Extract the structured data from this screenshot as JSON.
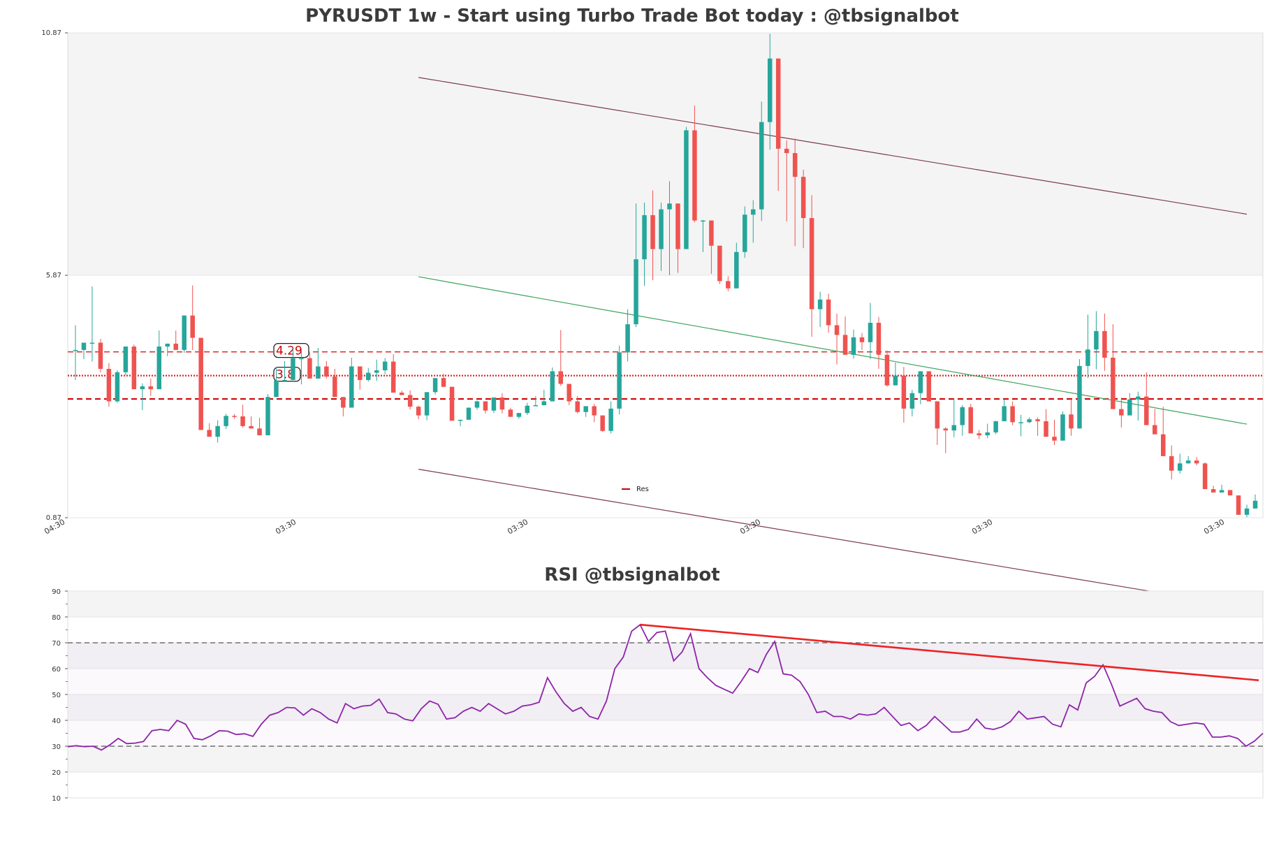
{
  "chart_data": [
    {
      "type": "candlestick",
      "title": "PYRUSDT 1w - Start using Turbo Trade Bot today : @tbsignalbot",
      "y_ticks": [
        "10.87",
        "5.87",
        "0.87"
      ],
      "ylim": [
        0.87,
        10.87
      ],
      "x_tick_labels": [
        "04:30",
        "03:30",
        "03:30",
        "03:30",
        "03:30",
        "03:30"
      ],
      "levels": [
        {
          "label": "4.29",
          "value": 4.29,
          "style": "dashed",
          "color": "#d62728"
        },
        {
          "label": "3.8",
          "value": 3.8,
          "style": "dotted",
          "color": "#d62728"
        },
        {
          "label": "",
          "value": 3.32,
          "style": "dashed",
          "color": "#cc0000"
        }
      ],
      "legend": [
        {
          "name": "Res",
          "color": "#cc0000"
        }
      ],
      "channel": {
        "upper": {
          "from": [
            41,
            9.95
          ],
          "to": [
            140,
            7.13
          ],
          "color": "#7a3a4f"
        },
        "middle": {
          "from": [
            41,
            5.84
          ],
          "to": [
            140,
            2.8
          ],
          "color": "#3aa35a"
        },
        "lower": {
          "from": [
            41,
            1.87
          ],
          "to": [
            140,
            -0.98
          ],
          "color": "#7a3a4f"
        }
      },
      "candles_ohlc": [
        [
          4.33,
          4.84,
          3.71,
          4.33
        ],
        [
          4.33,
          4.47,
          4.14,
          4.48
        ],
        [
          4.48,
          5.64,
          4.09,
          4.48
        ],
        [
          4.48,
          4.56,
          3.87,
          3.94
        ],
        [
          3.94,
          4.06,
          3.16,
          3.27
        ],
        [
          3.27,
          3.91,
          3.24,
          3.87
        ],
        [
          3.87,
          4.04,
          3.81,
          4.4
        ],
        [
          4.4,
          4.44,
          3.59,
          3.52
        ],
        [
          3.52,
          3.64,
          3.09,
          3.58
        ],
        [
          3.58,
          3.74,
          3.38,
          3.52
        ],
        [
          3.52,
          4.73,
          3.71,
          4.4
        ],
        [
          4.4,
          4.46,
          4.2,
          4.46
        ],
        [
          4.46,
          4.73,
          4.37,
          4.33
        ],
        [
          4.33,
          5.04,
          4.27,
          5.04
        ],
        [
          5.04,
          5.66,
          4.33,
          4.58
        ],
        [
          4.58,
          4.52,
          4.31,
          2.68
        ],
        [
          2.68,
          2.82,
          2.66,
          2.54
        ],
        [
          2.54,
          2.88,
          2.42,
          2.76
        ],
        [
          2.76,
          3.01,
          2.7,
          2.97
        ],
        [
          2.97,
          3.01,
          2.91,
          2.96
        ],
        [
          2.96,
          3.2,
          2.73,
          2.76
        ],
        [
          2.76,
          2.96,
          2.73,
          2.71
        ],
        [
          2.71,
          2.93,
          2.6,
          2.57
        ],
        [
          2.57,
          3.42,
          2.66,
          3.36
        ],
        [
          3.36,
          3.97,
          3.49,
          3.7
        ],
        [
          3.7,
          4.1,
          3.75,
          3.71
        ],
        [
          3.71,
          4.39,
          3.89,
          4.16
        ],
        [
          4.16,
          4.36,
          3.62,
          4.16
        ],
        [
          4.16,
          4.28,
          4.09,
          3.74
        ],
        [
          3.74,
          4.37,
          3.95,
          3.99
        ],
        [
          3.99,
          4.1,
          3.74,
          3.78
        ],
        [
          3.78,
          3.94,
          3.43,
          3.36
        ],
        [
          3.36,
          3.19,
          2.96,
          3.14
        ],
        [
          3.14,
          4.17,
          3.45,
          3.99
        ],
        [
          3.99,
          3.99,
          3.51,
          3.71
        ],
        [
          3.71,
          3.96,
          3.68,
          3.86
        ],
        [
          3.86,
          4.13,
          3.69,
          3.91
        ],
        [
          3.91,
          4.16,
          3.83,
          4.09
        ],
        [
          4.09,
          4.24,
          3.55,
          3.45
        ],
        [
          3.45,
          3.49,
          3.43,
          3.4
        ],
        [
          3.4,
          3.5,
          3.1,
          3.16
        ],
        [
          3.16,
          3.18,
          2.9,
          2.98
        ],
        [
          2.98,
          3.17,
          2.88,
          3.46
        ],
        [
          3.46,
          3.65,
          3.41,
          3.75
        ],
        [
          3.75,
          3.84,
          3.56,
          3.57
        ],
        [
          3.57,
          3.43,
          3.23,
          2.87
        ],
        [
          2.87,
          2.88,
          2.76,
          2.89
        ],
        [
          2.89,
          3.07,
          2.92,
          3.14
        ],
        [
          3.14,
          3.29,
          3.1,
          3.27
        ],
        [
          3.27,
          3.24,
          3.02,
          3.08
        ],
        [
          3.08,
          3.17,
          3.03,
          3.35
        ],
        [
          3.35,
          3.44,
          3.02,
          3.1
        ],
        [
          3.1,
          3.14,
          2.95,
          2.95
        ],
        [
          2.95,
          2.99,
          2.91,
          3.03
        ],
        [
          3.03,
          3.24,
          2.99,
          3.18
        ],
        [
          3.18,
          3.38,
          3.18,
          3.19
        ],
        [
          3.19,
          3.51,
          3.22,
          3.27
        ],
        [
          3.27,
          3.97,
          3.29,
          3.89
        ],
        [
          3.89,
          4.74,
          3.59,
          3.63
        ],
        [
          3.63,
          3.58,
          3.19,
          3.27
        ],
        [
          3.27,
          3.38,
          3.02,
          3.05
        ],
        [
          3.05,
          3.05,
          2.95,
          3.17
        ],
        [
          3.17,
          3.22,
          2.84,
          2.98
        ],
        [
          2.98,
          2.86,
          2.64,
          2.66
        ],
        [
          2.66,
          3.27,
          2.61,
          3.12
        ],
        [
          3.12,
          4.42,
          3.0,
          4.28
        ],
        [
          4.28,
          5.17,
          4.09,
          4.86
        ],
        [
          4.86,
          7.35,
          4.8,
          6.2
        ],
        [
          6.2,
          7.37,
          5.65,
          7.11
        ],
        [
          7.11,
          7.62,
          5.77,
          6.41
        ],
        [
          6.41,
          7.37,
          5.96,
          7.23
        ],
        [
          7.23,
          7.81,
          5.87,
          7.35
        ],
        [
          7.35,
          7.32,
          5.92,
          6.41
        ],
        [
          6.41,
          8.93,
          6.68,
          8.86
        ],
        [
          8.86,
          9.37,
          6.96,
          7.0
        ],
        [
          7.0,
          7.01,
          6.35,
          7.0
        ],
        [
          7.0,
          6.96,
          5.9,
          6.48
        ],
        [
          6.48,
          6.34,
          5.69,
          5.75
        ],
        [
          5.75,
          5.85,
          5.54,
          5.6
        ],
        [
          5.6,
          6.54,
          5.64,
          6.35
        ],
        [
          6.35,
          7.29,
          6.23,
          7.12
        ],
        [
          7.12,
          7.42,
          6.54,
          7.23
        ],
        [
          7.23,
          9.45,
          6.99,
          9.03
        ],
        [
          9.03,
          10.85,
          8.46,
          10.34
        ],
        [
          10.34,
          10.06,
          7.61,
          8.48
        ],
        [
          8.48,
          8.65,
          6.98,
          8.39
        ],
        [
          8.39,
          8.69,
          6.47,
          7.9
        ],
        [
          7.9,
          8.05,
          6.43,
          7.05
        ],
        [
          7.05,
          7.52,
          4.6,
          5.17
        ],
        [
          5.17,
          5.53,
          4.8,
          5.37
        ],
        [
          5.37,
          5.49,
          4.69,
          4.84
        ],
        [
          4.84,
          5.08,
          4.03,
          4.64
        ],
        [
          4.64,
          5.02,
          4.52,
          4.23
        ],
        [
          4.23,
          4.75,
          4.15,
          4.59
        ],
        [
          4.59,
          4.68,
          4.33,
          4.49
        ],
        [
          4.49,
          5.3,
          4.14,
          4.89
        ],
        [
          4.89,
          5.01,
          3.94,
          4.23
        ],
        [
          4.23,
          4.32,
          3.57,
          3.6
        ],
        [
          3.6,
          4.07,
          3.68,
          3.8
        ],
        [
          3.8,
          3.98,
          2.83,
          3.12
        ],
        [
          3.12,
          3.51,
          2.96,
          3.44
        ],
        [
          3.44,
          3.86,
          3.21,
          3.89
        ],
        [
          3.89,
          3.82,
          3.41,
          3.27
        ],
        [
          3.27,
          3.21,
          2.37,
          2.71
        ],
        [
          2.71,
          2.74,
          2.2,
          2.67
        ],
        [
          2.67,
          3.33,
          2.53,
          2.78
        ],
        [
          2.78,
          3.19,
          2.56,
          3.15
        ],
        [
          3.15,
          3.22,
          2.78,
          2.61
        ],
        [
          2.61,
          2.68,
          2.49,
          2.57
        ],
        [
          2.57,
          2.81,
          2.51,
          2.63
        ],
        [
          2.63,
          2.87,
          2.59,
          2.86
        ],
        [
          2.86,
          3.31,
          2.88,
          3.17
        ],
        [
          3.17,
          3.27,
          2.78,
          2.84
        ],
        [
          2.84,
          2.99,
          2.55,
          2.84
        ],
        [
          2.84,
          2.94,
          2.82,
          2.9
        ],
        [
          2.9,
          2.94,
          2.56,
          2.86
        ],
        [
          2.86,
          3.11,
          2.75,
          2.54
        ],
        [
          2.54,
          2.89,
          2.37,
          2.46
        ],
        [
          2.46,
          3.06,
          2.55,
          3.0
        ],
        [
          3.0,
          3.32,
          2.56,
          2.71
        ],
        [
          2.71,
          4.14,
          2.75,
          4.0
        ],
        [
          4.0,
          5.06,
          3.75,
          4.34
        ],
        [
          4.34,
          5.13,
          3.93,
          4.72
        ],
        [
          4.72,
          5.08,
          3.9,
          4.17
        ],
        [
          4.17,
          4.86,
          3.19,
          3.11
        ],
        [
          3.11,
          3.35,
          2.73,
          2.98
        ],
        [
          2.98,
          3.44,
          3.2,
          3.31
        ],
        [
          3.31,
          3.47,
          2.87,
          3.37
        ],
        [
          3.37,
          3.87,
          3.24,
          2.78
        ],
        [
          2.78,
          3.11,
          2.74,
          2.59
        ],
        [
          2.59,
          3.16,
          2.43,
          2.14
        ],
        [
          2.14,
          2.36,
          1.66,
          1.84
        ],
        [
          1.84,
          2.19,
          1.78,
          1.99
        ],
        [
          1.99,
          2.14,
          2.02,
          2.05
        ],
        [
          2.05,
          2.12,
          1.95,
          1.99
        ],
        [
          1.99,
          2.01,
          1.88,
          1.46
        ],
        [
          1.46,
          1.53,
          1.41,
          1.39
        ],
        [
          1.39,
          1.55,
          1.4,
          1.44
        ],
        [
          1.44,
          1.42,
          1.36,
          1.33
        ],
        [
          1.33,
          1.31,
          1.14,
          0.93
        ],
        [
          0.93,
          1.14,
          0.88,
          1.06
        ],
        [
          1.06,
          1.35,
          1.13,
          1.22
        ]
      ],
      "bull_color": "#26a69a",
      "bear_color": "#ef5350"
    },
    {
      "type": "line",
      "title": "RSI @tbsignalbot",
      "y_ticks": [
        "90",
        "80",
        "70",
        "60",
        "50",
        "40",
        "30",
        "20",
        "10"
      ],
      "ylim": [
        10,
        90
      ],
      "bands": [
        70,
        30
      ],
      "series": [
        {
          "values": [
            29.8,
            30.2,
            29.8,
            30.0,
            28.5,
            30.5,
            33.0,
            31.0,
            31.2,
            31.8,
            36.0,
            36.5,
            36.0,
            40.0,
            38.5,
            33.0,
            32.5,
            34.0,
            36.0,
            35.8,
            34.5,
            34.8,
            33.8,
            38.5,
            42.0,
            43.0,
            45.0,
            44.8,
            42.0,
            44.5,
            43.0,
            40.5,
            39.0,
            46.5,
            44.5,
            45.5,
            45.8,
            48.2,
            43.0,
            42.5,
            40.5,
            39.8,
            44.5,
            47.5,
            46.2,
            40.5,
            41.0,
            43.5,
            45.0,
            43.5,
            46.5,
            44.5,
            42.5,
            43.5,
            45.5,
            46.0,
            47.0,
            56.5,
            51.0,
            46.5,
            43.5,
            45.0,
            41.5,
            40.5,
            47.5,
            60.0,
            64.5,
            74.5,
            77.0,
            70.5,
            74.0,
            74.5,
            63.0,
            66.5,
            73.5,
            60.0,
            56.5,
            53.5,
            52.0,
            50.5,
            55.0,
            60.0,
            58.5,
            65.5,
            70.5,
            58.0,
            57.5,
            55.0,
            50.0,
            43.0,
            43.5,
            41.5,
            41.5,
            40.5,
            42.5,
            42.0,
            42.5,
            45.0,
            41.5,
            38.0,
            39.0,
            36.0,
            38.0,
            41.5,
            38.5,
            35.5,
            35.5,
            36.5,
            40.5,
            37.0,
            36.5,
            37.5,
            39.5,
            43.5,
            40.5,
            41.0,
            41.5,
            38.5,
            37.5,
            46.0,
            44.0,
            54.5,
            57.0,
            61.5,
            54.0,
            45.5,
            47.0,
            48.5,
            44.5,
            43.5,
            43.0,
            39.5,
            38.0,
            38.5,
            39.0,
            38.5,
            33.5,
            33.5,
            34.0,
            33.0,
            30.0,
            32.0,
            35.0
          ],
          "color": "#8e24aa"
        }
      ],
      "trendline": {
        "from": [
          68,
          77.0
        ],
        "to": [
          141.5,
          55.5
        ],
        "color": "#ee2222"
      }
    }
  ]
}
